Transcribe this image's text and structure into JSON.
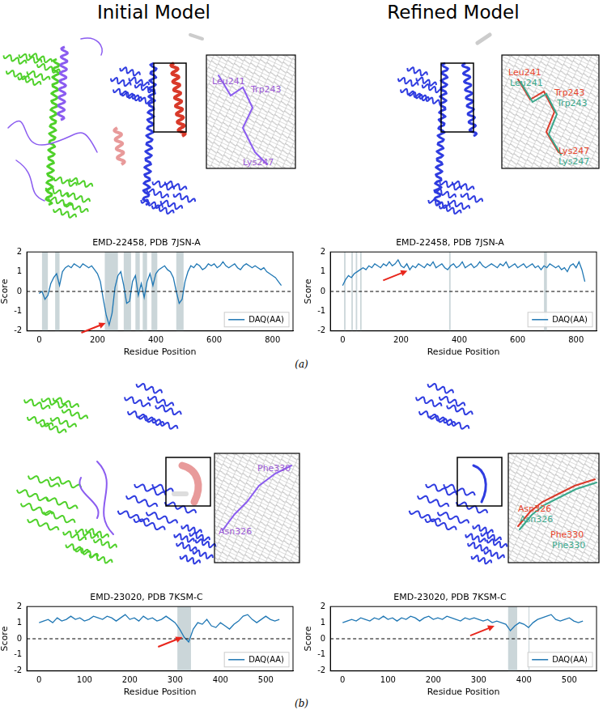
{
  "headers": [
    "Initial Model",
    "Refined Model"
  ],
  "panels": [
    {
      "tag": "(a)",
      "insets": [
        {
          "model": "Initial Model",
          "labels": [
            {
              "text": "Leu241",
              "color": "#9b59d6"
            },
            {
              "text": "Trp243",
              "color": "#9b59d6"
            },
            {
              "text": "Lys247",
              "color": "#9b59d6"
            }
          ]
        },
        {
          "model": "Refined Model",
          "labels": [
            {
              "text": "Leu241",
              "color": "#e8452c"
            },
            {
              "text": "Leu241",
              "color": "#3aa88c"
            },
            {
              "text": "Trp243",
              "color": "#e8452c"
            },
            {
              "text": "Trp243",
              "color": "#3aa88c"
            },
            {
              "text": "Lys247",
              "color": "#e8452c"
            },
            {
              "text": "Lys247",
              "color": "#3aa88c"
            }
          ]
        }
      ]
    },
    {
      "tag": "(b)",
      "insets": [
        {
          "model": "Initial Model",
          "labels": [
            {
              "text": "Phe330",
              "color": "#9b59d6"
            },
            {
              "text": "Asn326",
              "color": "#9b59d6"
            }
          ]
        },
        {
          "model": "Refined Model",
          "labels": [
            {
              "text": "Asn326",
              "color": "#e8452c"
            },
            {
              "text": "Asn326",
              "color": "#3aa88c"
            },
            {
              "text": "Phe330",
              "color": "#e8452c"
            },
            {
              "text": "Phe330",
              "color": "#3aa88c"
            }
          ]
        }
      ]
    }
  ],
  "chart_data": [
    {
      "type": "line",
      "title": "EMD-22458, PDB 7JSN-A",
      "x_label": "Residue Position",
      "y_label": "Score",
      "xlim": [
        -42,
        870
      ],
      "xticks": [
        0,
        200,
        400,
        600,
        800
      ],
      "ylim": [
        -2,
        2
      ],
      "yticks": [
        -2,
        -1,
        0,
        1,
        2
      ],
      "grid": false,
      "legend": "lower right",
      "zero_line": {
        "y": 0,
        "line_style": "dashed"
      },
      "shaded": [
        [
          10,
          30
        ],
        [
          55,
          70
        ],
        [
          225,
          270
        ],
        [
          290,
          315
        ],
        [
          330,
          345
        ],
        [
          355,
          370
        ],
        [
          385,
          405
        ],
        [
          470,
          495
        ]
      ],
      "arrow": {
        "x": 228,
        "y": -1.6
      },
      "x": [
        0,
        10,
        20,
        30,
        40,
        50,
        60,
        70,
        80,
        90,
        100,
        110,
        120,
        130,
        140,
        150,
        160,
        170,
        180,
        190,
        200,
        210,
        220,
        230,
        240,
        250,
        260,
        270,
        280,
        290,
        300,
        310,
        320,
        330,
        340,
        350,
        360,
        370,
        380,
        390,
        400,
        410,
        420,
        430,
        440,
        450,
        460,
        470,
        480,
        490,
        500,
        510,
        520,
        530,
        540,
        550,
        560,
        570,
        580,
        590,
        600,
        610,
        620,
        630,
        640,
        650,
        660,
        670,
        680,
        690,
        700,
        710,
        720,
        730,
        740,
        750,
        760,
        770,
        780,
        790,
        800,
        810,
        820,
        830
      ],
      "series": [
        {
          "name": "DAQ(AA)",
          "color": "#1f77b4",
          "values": [
            -0.1,
            0.0,
            -0.4,
            -0.2,
            0.4,
            0.7,
            0.9,
            0.3,
            1.0,
            1.2,
            1.3,
            1.2,
            1.4,
            1.3,
            1.2,
            1.4,
            1.3,
            1.2,
            1.3,
            1.1,
            0.9,
            0.5,
            -0.4,
            -1.2,
            -1.7,
            -1.1,
            0.2,
            0.8,
            1.0,
            0.3,
            -0.6,
            -0.5,
            0.5,
            0.8,
            -0.2,
            0.4,
            -0.3,
            0.5,
            0.9,
            0.3,
            0.9,
            1.1,
            1.2,
            1.3,
            1.1,
            1.0,
            0.7,
            0.0,
            -0.6,
            -0.4,
            0.5,
            1.0,
            1.3,
            1.2,
            1.4,
            1.3,
            1.1,
            1.2,
            1.4,
            1.3,
            1.4,
            1.2,
            1.3,
            1.5,
            1.3,
            1.2,
            1.3,
            1.4,
            1.2,
            1.1,
            1.3,
            1.4,
            1.3,
            1.2,
            1.3,
            1.2,
            1.1,
            1.2,
            1.0,
            0.9,
            0.8,
            0.7,
            0.5,
            0.3
          ]
        }
      ]
    },
    {
      "type": "line",
      "title": "EMD-22458, PDB 7JSN-A",
      "x_label": "Residue Position",
      "y_label": "Score",
      "xlim": [
        -42,
        870
      ],
      "xticks": [
        0,
        200,
        400,
        600,
        800
      ],
      "ylim": [
        -2,
        2
      ],
      "yticks": [
        -2,
        -1,
        0,
        1,
        2
      ],
      "grid": false,
      "legend": "lower right",
      "zero_line": {
        "y": 0,
        "line_style": "dashed"
      },
      "shaded": [
        [
          5,
          10
        ],
        [
          30,
          35
        ],
        [
          45,
          50
        ],
        [
          60,
          65
        ],
        [
          365,
          370
        ],
        [
          690,
          700
        ]
      ],
      "arrow": {
        "x": 222,
        "y": 1.05
      },
      "x": [
        0,
        10,
        20,
        30,
        40,
        50,
        60,
        70,
        80,
        90,
        100,
        110,
        120,
        130,
        140,
        150,
        160,
        170,
        180,
        190,
        200,
        210,
        220,
        230,
        240,
        250,
        260,
        270,
        280,
        290,
        300,
        310,
        320,
        330,
        340,
        350,
        360,
        370,
        380,
        390,
        400,
        410,
        420,
        430,
        440,
        450,
        460,
        470,
        480,
        490,
        500,
        510,
        520,
        530,
        540,
        550,
        560,
        570,
        580,
        590,
        600,
        610,
        620,
        630,
        640,
        650,
        660,
        670,
        680,
        690,
        700,
        710,
        720,
        730,
        740,
        750,
        760,
        770,
        780,
        790,
        800,
        810,
        820,
        830
      ],
      "series": [
        {
          "name": "DAQ(AA)",
          "color": "#1f77b4",
          "values": [
            0.3,
            0.6,
            0.8,
            0.7,
            0.9,
            1.0,
            1.1,
            1.2,
            1.1,
            1.3,
            1.2,
            1.4,
            1.3,
            1.2,
            1.4,
            1.3,
            1.5,
            1.3,
            1.4,
            1.6,
            1.3,
            1.2,
            1.4,
            1.1,
            1.3,
            1.2,
            1.4,
            1.3,
            1.2,
            1.4,
            1.3,
            1.5,
            1.2,
            1.3,
            1.4,
            1.2,
            1.1,
            1.3,
            1.4,
            1.2,
            1.3,
            1.5,
            1.2,
            1.3,
            1.4,
            1.2,
            1.3,
            1.5,
            1.3,
            1.2,
            1.3,
            1.4,
            1.3,
            1.2,
            1.4,
            1.3,
            1.5,
            1.2,
            1.3,
            1.4,
            1.2,
            1.3,
            1.4,
            1.2,
            1.3,
            1.4,
            1.2,
            1.3,
            1.1,
            1.3,
            1.2,
            1.4,
            1.3,
            1.2,
            1.3,
            1.1,
            1.2,
            1.0,
            1.3,
            1.4,
            1.2,
            1.5,
            1.1,
            0.5
          ]
        }
      ]
    },
    {
      "type": "line",
      "title": "EMD-23020, PDB 7KSM-C",
      "x_label": "Residue Position",
      "y_label": "Score",
      "xlim": [
        -27,
        560
      ],
      "xticks": [
        0,
        100,
        200,
        300,
        400,
        500
      ],
      "ylim": [
        -2,
        2
      ],
      "yticks": [
        -2,
        -1,
        0,
        1,
        2
      ],
      "grid": false,
      "legend": "lower right",
      "zero_line": {
        "y": 0,
        "line_style": "dashed"
      },
      "shaded": [
        [
          305,
          335
        ]
      ],
      "arrow": {
        "x": 316,
        "y": 0.1
      },
      "x": [
        0,
        10,
        20,
        30,
        40,
        50,
        60,
        70,
        80,
        90,
        100,
        110,
        120,
        130,
        140,
        150,
        160,
        170,
        180,
        190,
        200,
        210,
        220,
        230,
        240,
        250,
        260,
        270,
        280,
        290,
        300,
        310,
        320,
        330,
        340,
        350,
        360,
        370,
        380,
        390,
        400,
        410,
        420,
        430,
        440,
        450,
        460,
        470,
        480,
        490,
        500,
        510,
        520,
        530
      ],
      "series": [
        {
          "name": "DAQ(AA)",
          "color": "#1f77b4",
          "values": [
            1.0,
            1.1,
            1.2,
            1.0,
            1.3,
            1.1,
            1.2,
            1.4,
            1.2,
            1.3,
            1.1,
            1.2,
            1.4,
            1.3,
            1.2,
            1.4,
            1.3,
            1.1,
            1.3,
            1.5,
            1.2,
            1.3,
            1.1,
            1.4,
            1.2,
            1.3,
            1.1,
            1.2,
            1.4,
            1.2,
            1.0,
            0.6,
            0.1,
            -0.2,
            0.6,
            1.0,
            0.9,
            1.2,
            0.8,
            0.7,
            1.0,
            0.8,
            0.6,
            0.9,
            1.1,
            1.4,
            1.5,
            1.2,
            1.0,
            1.2,
            1.4,
            1.2,
            1.1,
            1.2
          ]
        }
      ]
    },
    {
      "type": "line",
      "title": "EMD-23020, PDB 7KSM-C",
      "x_label": "Residue Position",
      "y_label": "Score",
      "xlim": [
        -27,
        560
      ],
      "xticks": [
        0,
        100,
        200,
        300,
        400,
        500
      ],
      "ylim": [
        -2,
        2
      ],
      "yticks": [
        -2,
        -1,
        0,
        1,
        2
      ],
      "grid": false,
      "legend": "lower right",
      "zero_line": {
        "y": 0,
        "line_style": "dashed"
      },
      "shaded": [
        [
          365,
          385
        ],
        [
          410,
          412
        ]
      ],
      "arrow": {
        "x": 335,
        "y": 0.8
      },
      "x": [
        0,
        10,
        20,
        30,
        40,
        50,
        60,
        70,
        80,
        90,
        100,
        110,
        120,
        130,
        140,
        150,
        160,
        170,
        180,
        190,
        200,
        210,
        220,
        230,
        240,
        250,
        260,
        270,
        280,
        290,
        300,
        310,
        320,
        330,
        340,
        350,
        360,
        370,
        380,
        390,
        400,
        410,
        420,
        430,
        440,
        450,
        460,
        470,
        480,
        490,
        500,
        510,
        520,
        530
      ],
      "series": [
        {
          "name": "DAQ(AA)",
          "color": "#1f77b4",
          "values": [
            1.0,
            1.1,
            1.2,
            1.1,
            1.3,
            1.2,
            1.1,
            1.3,
            1.2,
            1.4,
            1.2,
            1.3,
            1.1,
            1.3,
            1.2,
            1.4,
            1.3,
            1.1,
            1.3,
            1.4,
            1.2,
            1.3,
            1.2,
            1.4,
            1.3,
            1.2,
            1.1,
            1.3,
            1.2,
            1.3,
            1.2,
            1.1,
            1.2,
            1.0,
            1.1,
            1.0,
            0.9,
            0.5,
            0.8,
            1.0,
            0.9,
            0.7,
            1.0,
            1.2,
            1.3,
            1.4,
            1.5,
            1.2,
            1.1,
            1.2,
            1.3,
            1.1,
            1.0,
            1.1
          ]
        }
      ]
    }
  ]
}
